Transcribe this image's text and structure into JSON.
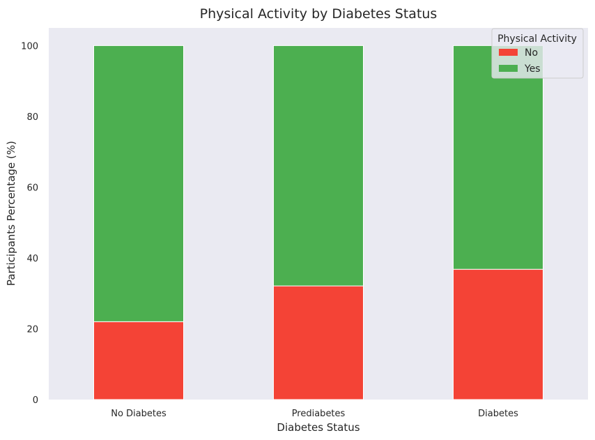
{
  "chart_data": {
    "type": "bar",
    "stacked": true,
    "title": "Physical Activity by Diabetes Status",
    "xlabel": "Diabetes Status",
    "ylabel": "Participants Percentage (%)",
    "categories": [
      "No Diabetes",
      "Prediabetes",
      "Diabetes"
    ],
    "series": [
      {
        "name": "No",
        "values": [
          22.0,
          32.1,
          36.8
        ],
        "color": "#f44336"
      },
      {
        "name": "Yes",
        "values": [
          78.0,
          67.9,
          63.2
        ],
        "color": "#4caf50"
      }
    ],
    "ylim": [
      0,
      105
    ],
    "yticks": [
      0,
      20,
      40,
      60,
      80,
      100
    ],
    "grid": false,
    "legend": {
      "title": "Physical Activity",
      "placement": "top-right"
    },
    "plot_background": "#eaeaf2"
  }
}
